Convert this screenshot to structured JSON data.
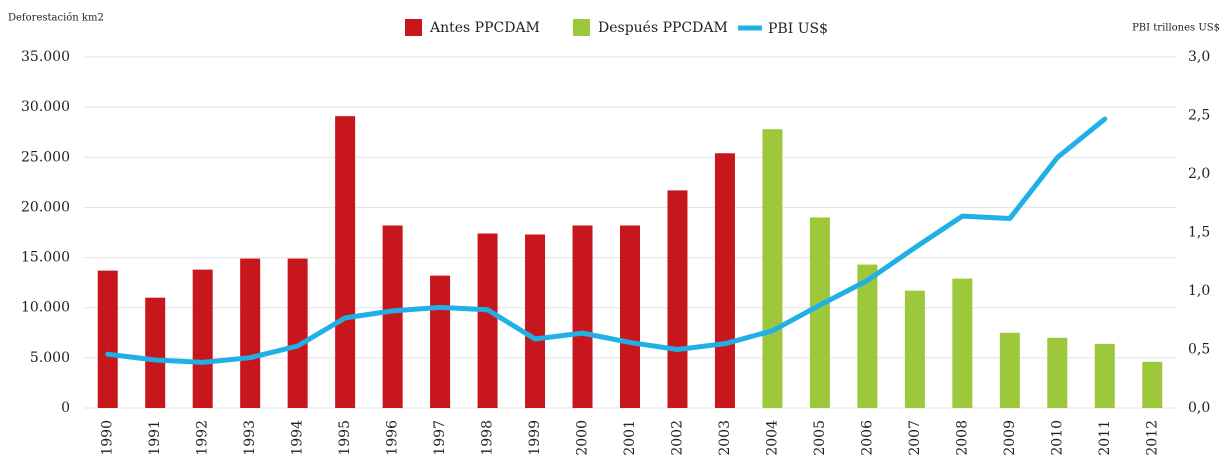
{
  "chart_data": {
    "type": "bar",
    "y_label": "Deforestación km2",
    "y2_label": "PBI trillones US$",
    "categories": [
      "1990",
      "1991",
      "1992",
      "1993",
      "1994",
      "1995",
      "1996",
      "1997",
      "1998",
      "1999",
      "2000",
      "2001",
      "2002",
      "2003",
      "2004",
      "2005",
      "2006",
      "2007",
      "2008",
      "2009",
      "2010",
      "2011",
      "2012"
    ],
    "series": [
      {
        "name": "Antes PPCDAM",
        "color": "#c8161d",
        "values": [
          13700,
          11000,
          13800,
          14900,
          14900,
          29100,
          18200,
          13200,
          17400,
          17300,
          18200,
          18200,
          21700,
          25400,
          null,
          null,
          null,
          null,
          null,
          null,
          null,
          null,
          null
        ]
      },
      {
        "name": "Después PPCDAM",
        "color": "#9dc83c",
        "values": [
          null,
          null,
          null,
          null,
          null,
          null,
          null,
          null,
          null,
          null,
          null,
          null,
          null,
          null,
          27800,
          19000,
          14300,
          11700,
          12900,
          7500,
          7000,
          6400,
          4600
        ]
      },
      {
        "name": "PBI US$",
        "color": "#1fb0e6",
        "type": "line",
        "axis": "y2",
        "values": [
          0.46,
          0.41,
          0.39,
          0.43,
          0.53,
          0.77,
          0.83,
          0.86,
          0.84,
          0.59,
          0.64,
          0.56,
          0.5,
          0.55,
          0.66,
          0.88,
          1.09,
          1.37,
          1.64,
          1.62,
          2.14,
          2.47,
          null
        ]
      }
    ],
    "ylim": [
      0,
      35000
    ],
    "yticks": [
      0,
      {
        "value": 5000,
        "label": "5.000"
      },
      {
        "value": 10000,
        "label": "10.000"
      },
      {
        "value": 15000,
        "label": "15.000"
      },
      {
        "value": 20000,
        "label": "20.000"
      },
      {
        "value": 25000,
        "label": "25.000"
      },
      {
        "value": 30000,
        "label": "30.000"
      },
      {
        "value": 35000,
        "label": "35.000"
      }
    ],
    "y2lim": [
      0,
      3
    ],
    "y2ticks": [
      {
        "value": 0,
        "label": "0,0"
      },
      {
        "value": 0.5,
        "label": "0,5"
      },
      {
        "value": 1,
        "label": "1,0"
      },
      {
        "value": 1.5,
        "label": "1,5"
      },
      {
        "value": 2,
        "label": "2,0"
      },
      {
        "value": 2.5,
        "label": "2,5"
      },
      {
        "value": 3,
        "label": "3,0"
      }
    ],
    "grid": true,
    "legend": "top"
  }
}
